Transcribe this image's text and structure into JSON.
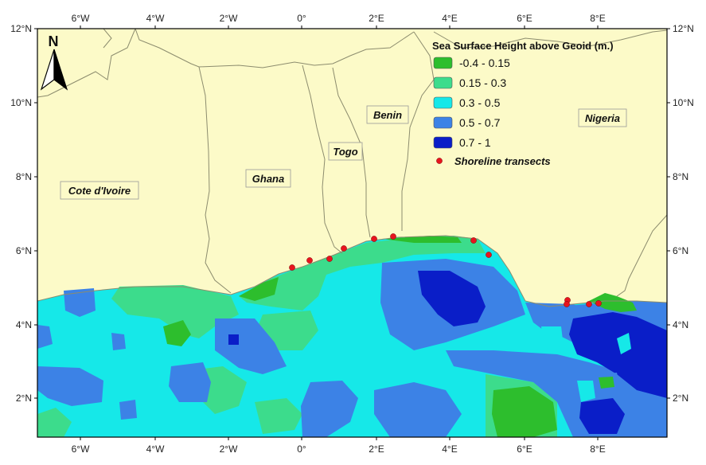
{
  "legend": {
    "title": "Sea Surface Height above Geoid (m.)",
    "classes": [
      {
        "label": "-0.4 - 0.15",
        "color": "#2DBE2D"
      },
      {
        "label": "0.15 - 0.3",
        "color": "#3CDC8C"
      },
      {
        "label": "0.3 - 0.5",
        "color": "#16E8E8"
      },
      {
        "label": "0.5 - 0.7",
        "color": "#3C82E6"
      },
      {
        "label": "0.7 - 1",
        "color": "#0A1EC8"
      }
    ],
    "transects_label": "Shoreline transects",
    "transects_color": "#E8141E"
  },
  "north_arrow": {
    "label": "N"
  },
  "countries": {
    "cote_divoire": "Cote d'Ivoire",
    "ghana": "Ghana",
    "togo": "Togo",
    "benin": "Benin",
    "nigeria": "Nigeria"
  },
  "axes": {
    "top_ticks": [
      "6°W",
      "4°W",
      "2°W",
      "0°",
      "2°E",
      "4°E",
      "6°E",
      "8°E"
    ],
    "bottom_ticks": [
      "6°W",
      "4°W",
      "2°W",
      "0°",
      "2°E",
      "4°E",
      "6°E",
      "8°E"
    ],
    "left_ticks": [
      "12°N",
      "10°N",
      "8°N",
      "6°N",
      "4°N",
      "2°N"
    ],
    "right_ticks": [
      "12°N",
      "10°N",
      "8°N",
      "6°N",
      "4°N",
      "2°N"
    ]
  },
  "colors": {
    "land": "#FCFAC8",
    "border": "#8C8C6E",
    "frame": "#000000"
  }
}
